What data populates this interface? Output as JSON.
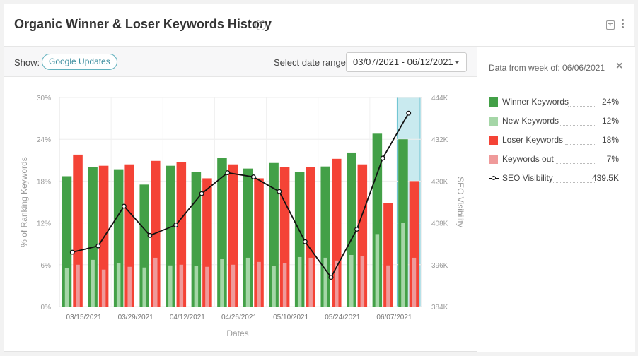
{
  "header": {
    "title": "Organic Winner & Loser Keywords History",
    "help_icon": "?",
    "calendar_icon_text": "7"
  },
  "toolbar": {
    "show_label": "Show:",
    "google_updates_label": "Google Updates",
    "date_range_label": "Select date range:",
    "date_range_value": "03/07/2021 - 06/12/2021"
  },
  "side": {
    "heading": "Data from week of: 06/06/2021",
    "close_icon": "×",
    "legend": [
      {
        "name": "Winner Keywords",
        "value": "24%",
        "color": "#43a047",
        "kind": "box"
      },
      {
        "name": "New Keywords",
        "value": "12%",
        "color": "#a5d6a7",
        "kind": "box"
      },
      {
        "name": "Loser Keywords",
        "value": "18%",
        "color": "#f44336",
        "kind": "box"
      },
      {
        "name": "Keywords out",
        "value": "7%",
        "color": "#ef9a9a",
        "kind": "box"
      },
      {
        "name": "SEO Visibility",
        "value": "439.5K",
        "color": "#111111",
        "kind": "line"
      }
    ]
  },
  "chart_data": {
    "type": "bar",
    "xlabel": "Dates",
    "ylabel": "% of Ranking Keywords",
    "y2label": "SEO Visibility",
    "ylim": [
      0,
      30
    ],
    "y2lim": [
      384,
      444
    ],
    "yticks": [
      "0%",
      "6%",
      "12%",
      "18%",
      "24%",
      "30%"
    ],
    "y2ticks": [
      "384K",
      "396K",
      "408K",
      "420K",
      "432K",
      "444K"
    ],
    "x_tick_labels": [
      "03/15/2021",
      "03/29/2021",
      "04/12/2021",
      "04/26/2021",
      "05/10/2021",
      "05/24/2021",
      "06/07/2021"
    ],
    "weeks": 14,
    "highlighted_week": 13,
    "series": [
      {
        "name": "Winner Keywords",
        "color": "#43a047",
        "values": [
          18.7,
          20.0,
          19.7,
          17.5,
          20.2,
          19.3,
          21.3,
          19.8,
          20.6,
          19.3,
          20.1,
          22.1,
          24.8,
          24.0
        ]
      },
      {
        "name": "New Keywords",
        "color": "#a5d6a7",
        "values": [
          5.5,
          6.7,
          6.2,
          5.6,
          5.9,
          5.8,
          6.8,
          7.0,
          5.8,
          7.1,
          7.0,
          7.4,
          10.4,
          12.0
        ]
      },
      {
        "name": "Loser Keywords",
        "color": "#f44336",
        "values": [
          21.8,
          20.2,
          20.4,
          20.9,
          20.7,
          18.4,
          20.4,
          18.4,
          20.0,
          20.0,
          21.2,
          20.4,
          14.8,
          18.0
        ]
      },
      {
        "name": "Keywords out",
        "color": "#ef9a9a",
        "values": [
          6.0,
          5.3,
          5.7,
          7.0,
          6.0,
          5.7,
          6.0,
          6.4,
          6.2,
          7.0,
          6.6,
          7.2,
          5.9,
          7.0
        ]
      },
      {
        "name": "SEO Visibility",
        "color": "#111111",
        "type": "line",
        "values": [
          399.6,
          401.4,
          412.8,
          404.4,
          407.4,
          416.4,
          422.4,
          421.2,
          417.0,
          402.6,
          392.4,
          406.2,
          426.6,
          439.5
        ]
      }
    ]
  }
}
